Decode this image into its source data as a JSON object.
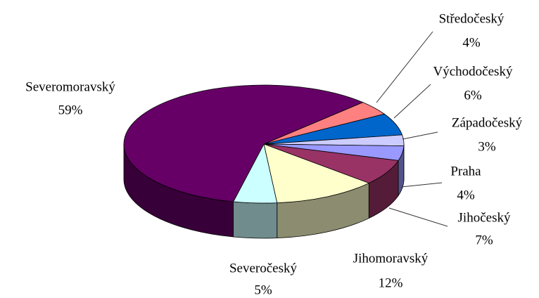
{
  "chart_data": {
    "type": "pie3d",
    "categories": [
      "Středočeský",
      "Východočeský",
      "Západočeský",
      "Praha",
      "Jihočeský",
      "Jihomoravský",
      "Severočeský",
      "Severomoravský"
    ],
    "values": [
      4,
      6,
      3,
      4,
      7,
      12,
      5,
      59
    ],
    "value_labels": [
      "4%",
      "6%",
      "3%",
      "4%",
      "7%",
      "12%",
      "5%",
      "59%"
    ],
    "colors": [
      "#ff8080",
      "#0066cc",
      "#ccccff",
      "#9999ff",
      "#993366",
      "#ffffcc",
      "#ccffff",
      "#660066"
    ]
  }
}
